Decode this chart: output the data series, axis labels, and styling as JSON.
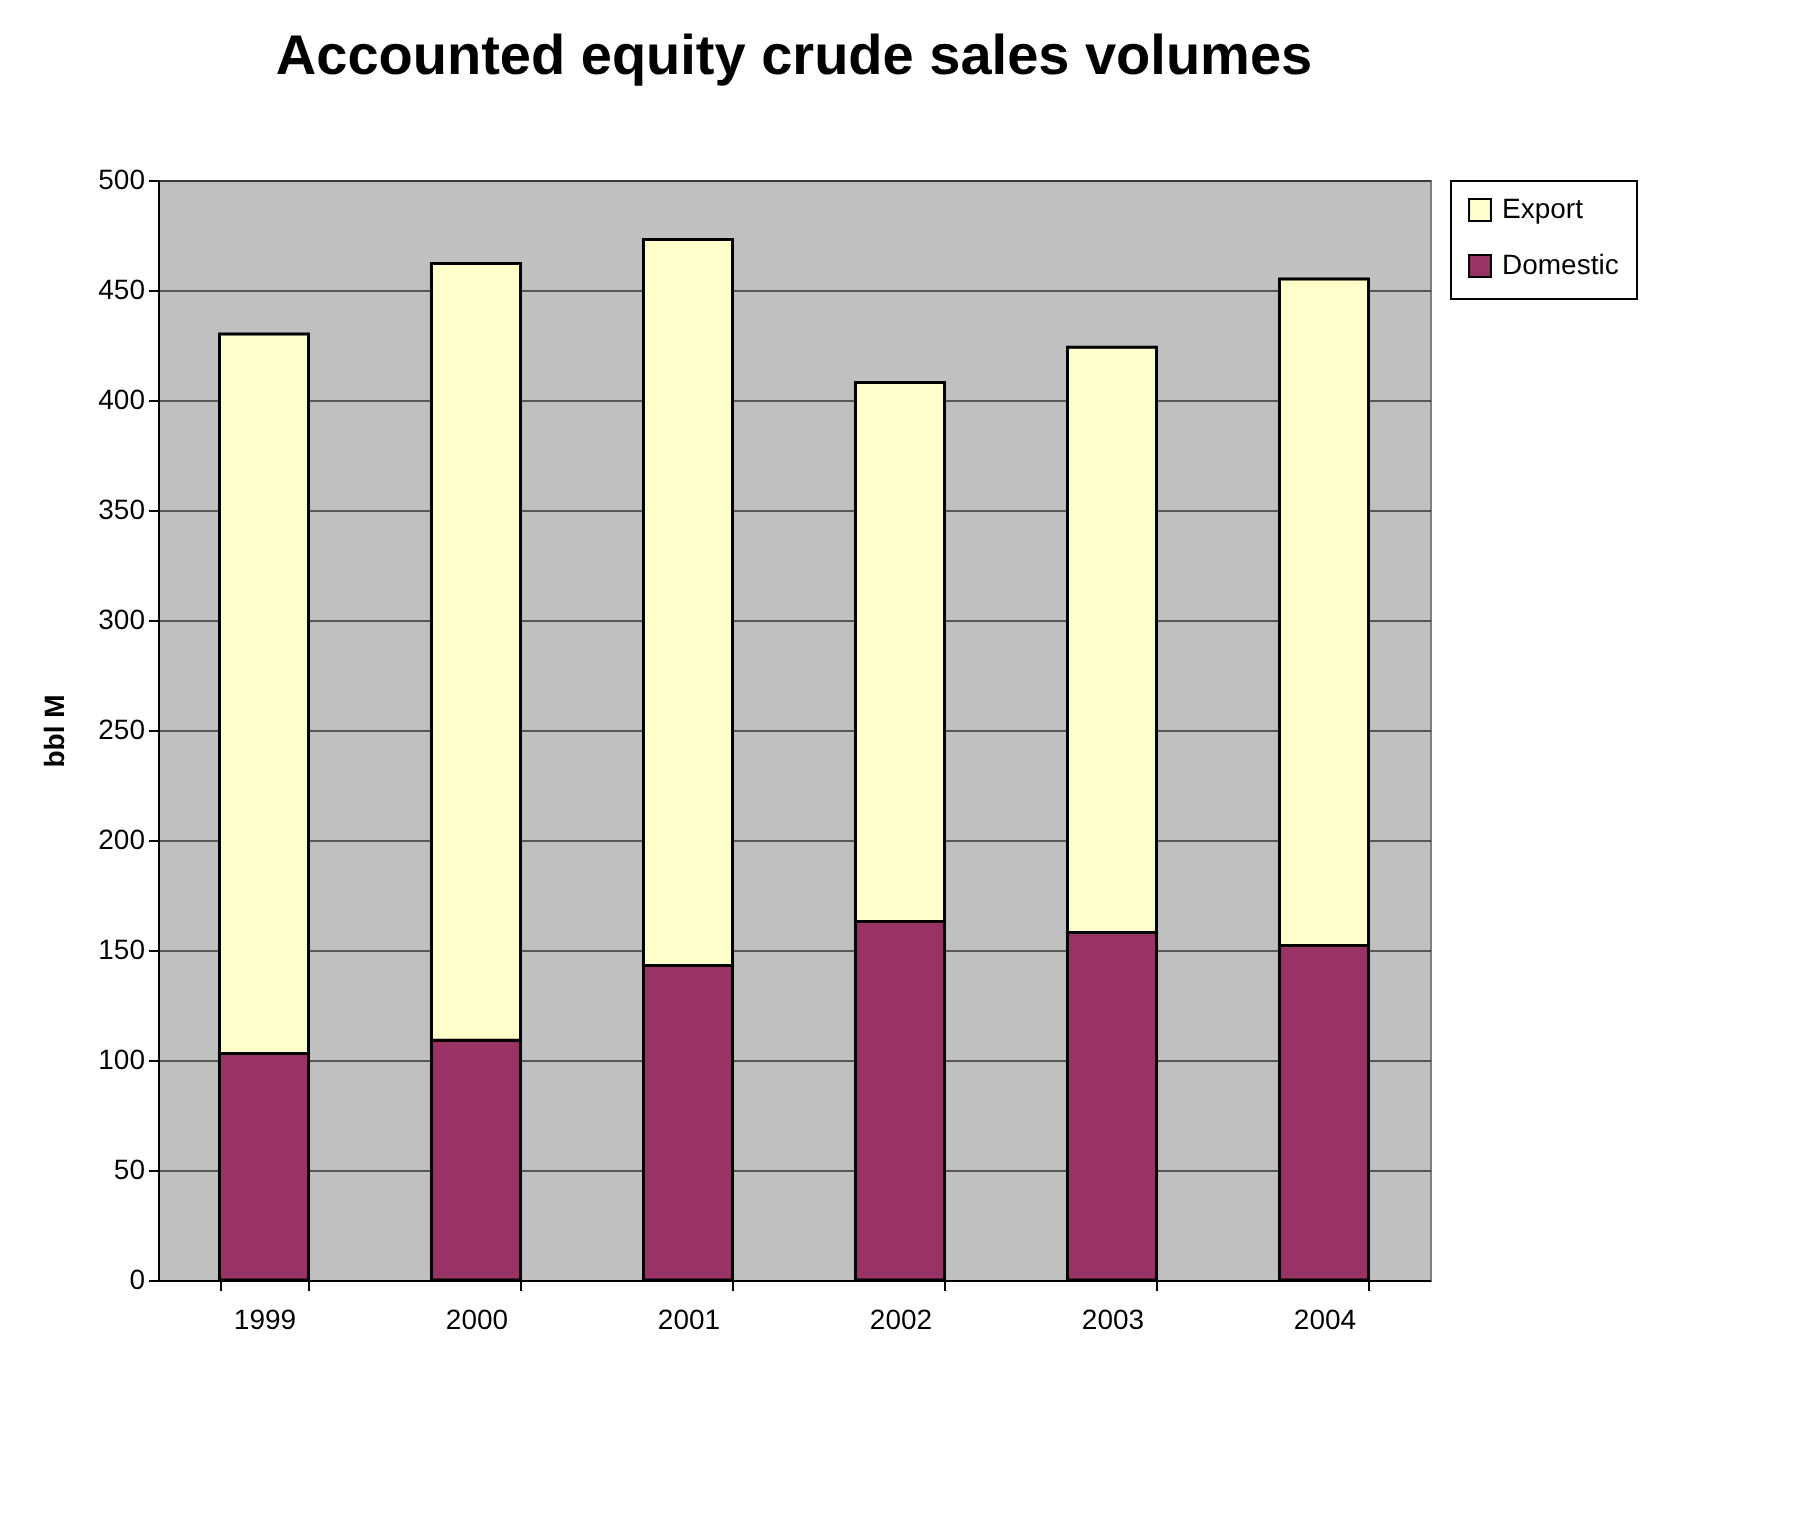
{
  "chart_data": {
    "type": "bar",
    "title": "Accounted equity crude sales volumes",
    "ylabel": "bbl M",
    "categories": [
      "1999",
      "2000",
      "2001",
      "2002",
      "2003",
      "2004"
    ],
    "stacked": true,
    "series": [
      {
        "name": "Domestic",
        "color": "#993366",
        "values": [
          103,
          109,
          143,
          163,
          158,
          152
        ]
      },
      {
        "name": "Export",
        "color": "#ffffcc",
        "values": [
          327,
          353,
          330,
          245,
          266,
          303
        ]
      }
    ],
    "ylim": [
      0,
      500
    ],
    "yticks": [
      0,
      50,
      100,
      150,
      200,
      250,
      300,
      350,
      400,
      450,
      500
    ],
    "grid": "y",
    "legend": "right"
  }
}
